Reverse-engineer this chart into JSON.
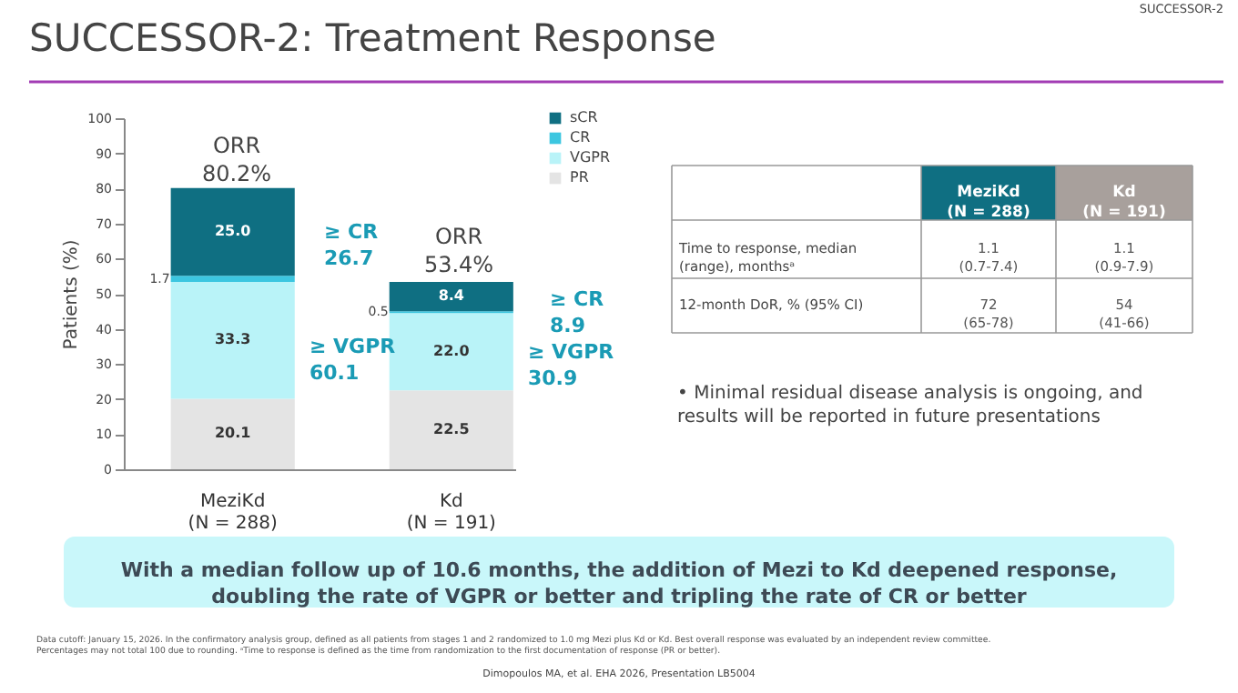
{
  "chart_data": {
    "type": "bar",
    "stacked": true,
    "title": "SUCCESSOR-2: Treatment Response",
    "ylabel": "Patients (%)",
    "categories": [
      "MeziKd\n(N = 288)",
      "Kd\n(N = 191)"
    ],
    "series": [
      {
        "name": "PR",
        "color": "#e4e4e4",
        "values": [
          20.1,
          22.5
        ],
        "value_labels": [
          "20.1",
          "22.5"
        ]
      },
      {
        "name": "VGPR",
        "color": "#b9f3f8",
        "values": [
          33.3,
          22.0
        ],
        "value_labels": [
          "33.3",
          "22.0"
        ]
      },
      {
        "name": "CR",
        "color": "#3cc6e0",
        "values": [
          1.7,
          0.5
        ],
        "value_labels": [
          "1.7",
          "0.5"
        ]
      },
      {
        "name": "sCR",
        "color": "#0f6f82",
        "values": [
          25.0,
          8.4
        ],
        "value_labels": [
          "25.0",
          "8.4"
        ]
      }
    ],
    "ylim": [
      0,
      100
    ],
    "yticks": [
      0,
      10,
      20,
      30,
      40,
      50,
      60,
      70,
      80,
      90,
      100
    ],
    "grid": false,
    "legend": "top right",
    "annotations": [
      "ORR\n80.2%",
      "ORR\n53.4%",
      "≥ CR\n26.7",
      "≥ VGPR\n60.1",
      "≥ CR\n8.9",
      "≥ VGPR\n30.9",
      "SUCCESSOR-2",
      "MeziKd\n(N = 288)",
      "Kd\n(N = 191)",
      "Time to response, median\n(range), monthsᵃ",
      "1.1\n(0.7-7.4)",
      "1.1\n(0.9-7.9)",
      "12-month DoR, % (95% CI)",
      "72\n(65-78)",
      "54\n(41-66)",
      "•  Minimal residual disease analysis is ongoing, and\n    results will be reported in future presentations",
      "With a median follow up of 10.6 months, the addition of Mezi to Kd deepened response,\ndoubling the rate of VGPR or better and tripling the rate of CR or better",
      "Data cutoff: January 15, 2026. In the confirmatory analysis group, defined as all patients from stages 1 and 2 randomized to 1.0 mg Mezi plus Kd or Kd. Best overall response was evaluated by an independent review committee.\nPercentages may not total 100 due to rounding. ᵃTime to response is defined as the time from randomization to the first documentation of response (PR or better).",
      "Dimopoulos MA, et al. EHA 2026, Presentation LB5004"
    ]
  }
}
